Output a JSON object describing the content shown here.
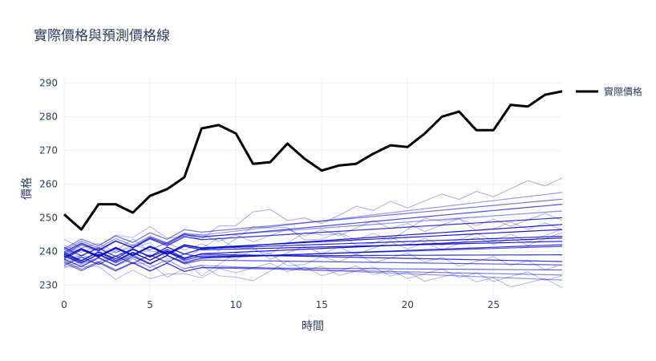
{
  "chart_data": {
    "type": "line",
    "title": "實際價格與預測價格線",
    "xlabel": "時間",
    "ylabel": "價格",
    "xlim": [
      0,
      29
    ],
    "ylim": [
      227,
      292
    ],
    "x_ticks": [
      0,
      5,
      10,
      15,
      20,
      25
    ],
    "y_ticks": [
      230,
      240,
      250,
      260,
      270,
      280,
      290
    ],
    "grid": true,
    "legend": {
      "position": "right",
      "entries": [
        "實際價格"
      ]
    },
    "colors": {
      "actual": "#000000",
      "prediction": "#0000cc",
      "grid": "#eef0f4",
      "text": "#2a3f5f"
    },
    "actual": {
      "name": "實際價格",
      "x": [
        0,
        1,
        2,
        3,
        4,
        5,
        6,
        7,
        8,
        9,
        10,
        11,
        12,
        13,
        14,
        15,
        16,
        17,
        18,
        19,
        20,
        21,
        22,
        23,
        24,
        25,
        26,
        27,
        28,
        29
      ],
      "y": [
        251,
        246.5,
        254,
        254,
        251.5,
        256.5,
        258.5,
        262,
        276.5,
        277.5,
        275,
        266,
        266.5,
        272,
        267.5,
        264,
        265.5,
        266,
        269,
        271.5,
        271,
        275,
        280,
        281.5,
        276,
        276,
        283.5,
        283,
        286.5,
        287.5
      ]
    },
    "predictions": {
      "straight": [
        {
          "start": 238.0,
          "end": 248.0,
          "opacity": 0.9
        },
        {
          "start": 240.5,
          "end": 254.0,
          "opacity": 0.7
        },
        {
          "start": 237.5,
          "end": 244.0,
          "opacity": 0.9
        },
        {
          "start": 241.0,
          "end": 250.0,
          "opacity": 0.8
        },
        {
          "start": 236.5,
          "end": 242.0,
          "opacity": 0.8
        },
        {
          "start": 239.0,
          "end": 246.5,
          "opacity": 0.9
        },
        {
          "start": 238.5,
          "end": 239.0,
          "opacity": 0.8
        },
        {
          "start": 237.0,
          "end": 241.5,
          "opacity": 0.7
        },
        {
          "start": 240.0,
          "end": 237.0,
          "opacity": 0.8
        },
        {
          "start": 242.0,
          "end": 255.5,
          "opacity": 0.55
        },
        {
          "start": 235.5,
          "end": 234.5,
          "opacity": 0.6
        },
        {
          "start": 239.5,
          "end": 243.0,
          "opacity": 0.9
        },
        {
          "start": 236.0,
          "end": 233.0,
          "opacity": 0.5
        },
        {
          "start": 241.5,
          "end": 252.0,
          "opacity": 0.45
        },
        {
          "start": 238.0,
          "end": 236.0,
          "opacity": 0.65
        },
        {
          "start": 240.0,
          "end": 257.5,
          "opacity": 0.4
        },
        {
          "start": 237.5,
          "end": 231.5,
          "opacity": 0.4
        },
        {
          "start": 239.5,
          "end": 244.5,
          "opacity": 0.85
        }
      ],
      "noisy": [
        {
          "start": 238,
          "end": 261,
          "kinks": [
            11,
            19
          ],
          "offsets": [
            5,
            1
          ],
          "opacity": 0.35
        },
        {
          "start": 240,
          "end": 230,
          "kinks": [
            6,
            10
          ],
          "offsets": [
            -4,
            -5
          ],
          "opacity": 0.3
        },
        {
          "start": 236,
          "end": 244,
          "kinks": [
            4,
            9
          ],
          "offsets": [
            5,
            4
          ],
          "opacity": 0.3
        },
        {
          "start": 242,
          "end": 236,
          "kinks": [
            8,
            14
          ],
          "offsets": [
            -6,
            -3
          ],
          "opacity": 0.3
        },
        {
          "start": 239,
          "end": 248,
          "kinks": [
            12,
            22
          ],
          "offsets": [
            5,
            4
          ],
          "opacity": 0.3
        },
        {
          "start": 237,
          "end": 232,
          "kinks": [
            3,
            7
          ],
          "offsets": [
            -4,
            -4
          ],
          "opacity": 0.3
        },
        {
          "start": 241,
          "end": 250,
          "kinks": [
            5,
            18
          ],
          "offsets": [
            4,
            1
          ],
          "opacity": 0.3
        },
        {
          "start": 238,
          "end": 245,
          "kinks": [
            9,
            15
          ],
          "offsets": [
            -3,
            4
          ],
          "opacity": 0.3
        }
      ]
    }
  }
}
